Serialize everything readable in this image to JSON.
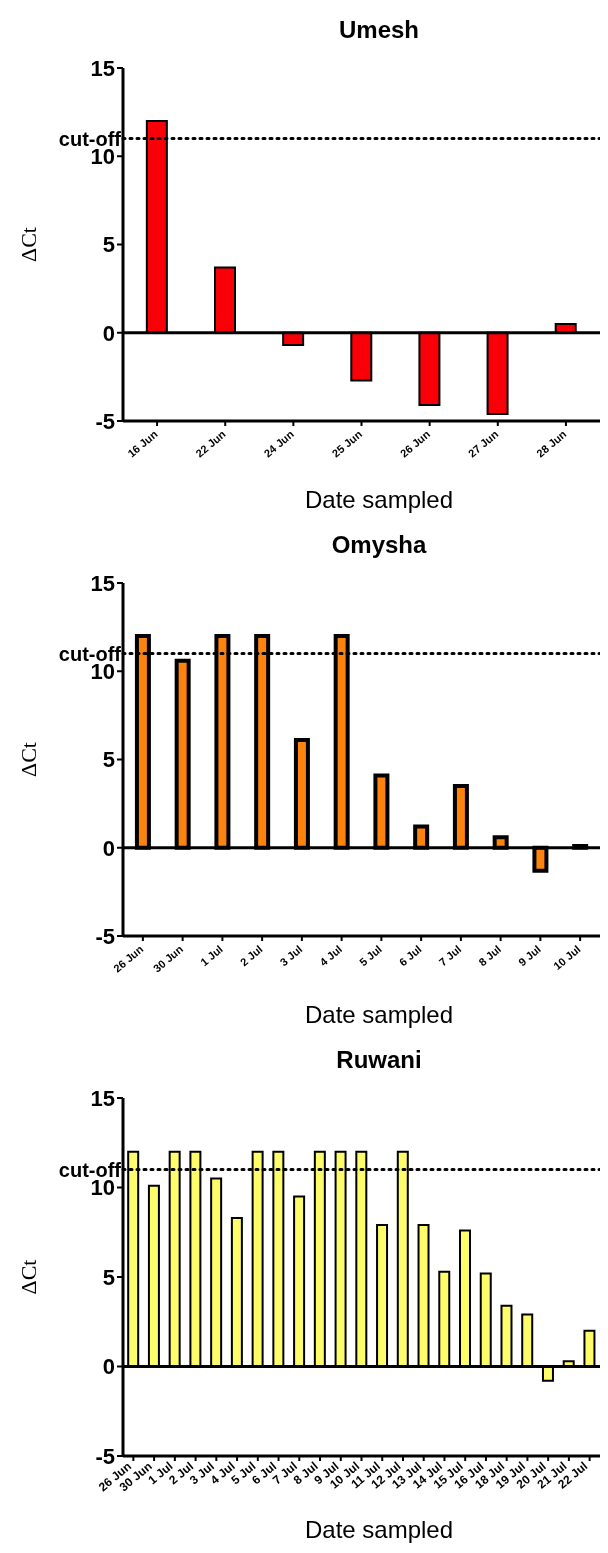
{
  "chart_data": [
    {
      "type": "bar",
      "title": "Umesh",
      "xlabel": "Date sampled",
      "ylabel": "ΔCt",
      "categories": [
        "16 Jun",
        "22 Jun",
        "24 Jun",
        "25 Jun",
        "26 Jun",
        "27 Jun",
        "28 Jun"
      ],
      "values": [
        12,
        3.7,
        -0.7,
        -2.7,
        -4.1,
        -4.6,
        0.5
      ],
      "color": "#f90008",
      "ylim": [
        -5,
        15
      ],
      "yticks": [
        -5,
        0,
        5,
        10,
        15
      ],
      "ref_lines": [
        {
          "axis": "y",
          "value": 11,
          "label": "cut-off",
          "line_style": "dotted",
          "color": "#000000"
        }
      ]
    },
    {
      "type": "bar",
      "title": "Omysha",
      "xlabel": "Date sampled",
      "ylabel": "ΔCt",
      "categories": [
        "26 Jun",
        "30 Jun",
        "1 Jul",
        "2 Jul",
        "3 Jul",
        "4 Jul",
        "5 Jul",
        "6 Jul",
        "7 Jul",
        "8 Jul",
        "9 Jul",
        "10 Jul"
      ],
      "values": [
        12,
        10.6,
        12,
        12,
        6.1,
        12,
        4.1,
        1.2,
        3.5,
        0.6,
        -1.3,
        0.1
      ],
      "color": "#fb830e",
      "ylim": [
        -5,
        15
      ],
      "yticks": [
        -5,
        0,
        5,
        10,
        15
      ],
      "ref_lines": [
        {
          "axis": "y",
          "value": 11,
          "label": "cut-off",
          "line_style": "dotted",
          "color": "#000000"
        }
      ]
    },
    {
      "type": "bar",
      "title": "Ruwani",
      "xlabel": "Date sampled",
      "ylabel": "ΔCt",
      "categories": [
        "26 Jun",
        "30 Jun",
        "1 Jul",
        "2 Jul",
        "3 Jul",
        "4 Jul",
        "5 Jul",
        "6 Jul",
        "7 Jul",
        "8 Jul",
        "9 Jul",
        "10 Jul",
        "11 Jul",
        "12 Jul",
        "13 Jul",
        "14 Jul",
        "15 Jul",
        "16 Jul",
        "18 Jul",
        "19 Jul",
        "20 Jul",
        "21 Jul",
        "22 Jul"
      ],
      "values": [
        12,
        10.1,
        12,
        12,
        10.5,
        8.3,
        12,
        12,
        9.5,
        12,
        12,
        12,
        7.9,
        12,
        7.9,
        5.3,
        7.6,
        5.2,
        3.4,
        2.9,
        -0.8,
        0.3,
        2.0
      ],
      "color": "#fdfc6a",
      "ylim": [
        -5,
        15
      ],
      "yticks": [
        -5,
        0,
        5,
        10,
        15
      ],
      "ref_lines": [
        {
          "axis": "y",
          "value": 11,
          "label": "cut-off",
          "line_style": "dotted",
          "color": "#000000"
        }
      ]
    }
  ]
}
